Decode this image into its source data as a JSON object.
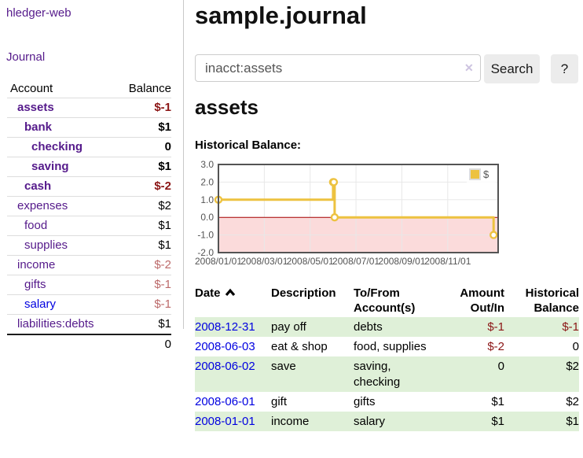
{
  "app": {
    "title": "hledger-web"
  },
  "colors": {
    "link_purple": "#551a8b",
    "link_blue": "#0000e0",
    "negative_strong": "#8b1515",
    "negative_soft": "#bc6a6a",
    "row_green": "#dff0d8",
    "chart_yellow": "#edc240",
    "chart_negative_fill": "#fbdbdb",
    "chart_zero_line": "#a40000",
    "chart_border": "#545454",
    "chart_grid": "#e8e8e8",
    "axis_label": "#545454"
  },
  "sidebar": {
    "journal_link": "Journal",
    "accounts_table": {
      "headers": {
        "account": "Account",
        "balance": "Balance"
      },
      "rows": [
        {
          "account": "assets",
          "balance": "$-1",
          "depth": 1,
          "bold": true,
          "balance_negative": true,
          "link": "purple"
        },
        {
          "account": "bank",
          "balance": "$1",
          "depth": 2,
          "bold": true,
          "balance_negative": false,
          "link": "purple"
        },
        {
          "account": "checking",
          "balance": "0",
          "depth": 3,
          "bold": true,
          "balance_negative": false,
          "link": "purple"
        },
        {
          "account": "saving",
          "balance": "$1",
          "depth": 3,
          "bold": true,
          "balance_negative": false,
          "link": "purple"
        },
        {
          "account": "cash",
          "balance": "$-2",
          "depth": 2,
          "bold": true,
          "balance_negative": true,
          "link": "purple"
        },
        {
          "account": "expenses",
          "balance": "$2",
          "depth": 1,
          "bold": false,
          "balance_negative": false,
          "link": "purple"
        },
        {
          "account": "food",
          "balance": "$1",
          "depth": 2,
          "bold": false,
          "balance_negative": false,
          "link": "purple"
        },
        {
          "account": "supplies",
          "balance": "$1",
          "depth": 2,
          "bold": false,
          "balance_negative": false,
          "link": "purple"
        },
        {
          "account": "income",
          "balance": "$-2",
          "depth": 1,
          "bold": false,
          "balance_negative": true,
          "link": "purple"
        },
        {
          "account": "gifts",
          "balance": "$-1",
          "depth": 2,
          "bold": false,
          "balance_negative": true,
          "link": "purple"
        },
        {
          "account": "salary",
          "balance": "$-1",
          "depth": 2,
          "bold": false,
          "balance_negative": true,
          "link": "blue"
        },
        {
          "account": "liabilities:debts",
          "balance": "$1",
          "depth": 1,
          "bold": false,
          "balance_negative": false,
          "link": "purple"
        }
      ],
      "total": "0"
    }
  },
  "header": {
    "title": "sample.journal"
  },
  "search": {
    "value": "inacct:assets",
    "clear_icon": "✕",
    "button_label": "Search",
    "help_label": "?"
  },
  "account_page": {
    "heading": "assets",
    "chart_label": "Historical Balance:"
  },
  "chart_data": {
    "type": "line",
    "subtype": "step",
    "title": "Historical Balance",
    "series": [
      {
        "name": "$",
        "points": [
          {
            "date": "2008/01/01",
            "month": 0,
            "value": 1
          },
          {
            "date": "2008/06/01",
            "month": 5.0,
            "value": 2
          },
          {
            "date": "2008/06/02",
            "month": 5.033,
            "value": 2
          },
          {
            "date": "2008/06/03",
            "month": 5.067,
            "value": 0
          },
          {
            "date": "2008/12/31",
            "month": 12.0,
            "value": -1
          }
        ]
      }
    ],
    "x_ticks": [
      {
        "month": 0,
        "label": "2008/01/01"
      },
      {
        "month": 2,
        "label": "2008/03/01"
      },
      {
        "month": 4,
        "label": "2008/05/01"
      },
      {
        "month": 6,
        "label": "2008/07/01"
      },
      {
        "month": 8,
        "label": "2008/09/01"
      },
      {
        "month": 10,
        "label": "2008/11/01"
      }
    ],
    "y_ticks": [
      {
        "value": 3,
        "label": "3.0"
      },
      {
        "value": 2,
        "label": "2.0"
      },
      {
        "value": 1,
        "label": "1.0"
      },
      {
        "value": 0,
        "label": "0.0"
      },
      {
        "value": -1,
        "label": "-1.0"
      },
      {
        "value": -2,
        "label": "-2.0"
      }
    ],
    "xlim_months": [
      0,
      12.2
    ],
    "ylim": [
      -2,
      3
    ],
    "grid": true,
    "legend": {
      "label": "$",
      "position": "top-right"
    }
  },
  "register_table": {
    "headers": [
      {
        "line1": "Date",
        "line2": "",
        "sort_icon": "chevron-up"
      },
      {
        "line1": "Description",
        "line2": ""
      },
      {
        "line1": "To/From",
        "line2": "Account(s)"
      },
      {
        "line1": "Amount",
        "line2": "Out/In"
      },
      {
        "line1": "Historical",
        "line2": "Balance"
      }
    ],
    "rows": [
      {
        "date": "2008-12-31",
        "description": "pay off",
        "accounts": "debts",
        "amount": "$-1",
        "balance": "$-1",
        "amount_negative": true,
        "balance_negative": true
      },
      {
        "date": "2008-06-03",
        "description": "eat & shop",
        "accounts": "food, supplies",
        "amount": "$-2",
        "balance": "0",
        "amount_negative": true,
        "balance_negative": false
      },
      {
        "date": "2008-06-02",
        "description": "save",
        "accounts": "saving, checking",
        "amount": "0",
        "balance": "$2",
        "amount_negative": false,
        "balance_negative": false
      },
      {
        "date": "2008-06-01",
        "description": "gift",
        "accounts": "gifts",
        "amount": "$1",
        "balance": "$2",
        "amount_negative": false,
        "balance_negative": false
      },
      {
        "date": "2008-01-01",
        "description": "income",
        "accounts": "salary",
        "amount": "$1",
        "balance": "$1",
        "amount_negative": false,
        "balance_negative": false
      }
    ]
  }
}
